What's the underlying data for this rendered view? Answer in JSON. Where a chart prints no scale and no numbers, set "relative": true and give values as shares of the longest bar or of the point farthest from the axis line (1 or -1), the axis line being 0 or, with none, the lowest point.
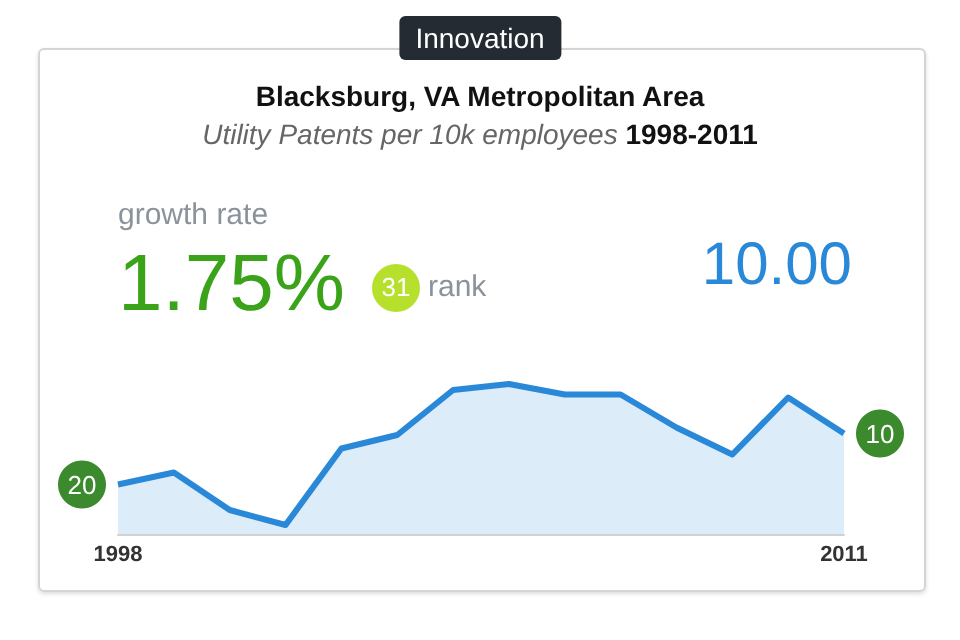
{
  "chart_data": {
    "type": "area",
    "relative": true,
    "title": "Blacksburg, VA Metropolitan Area",
    "subtitle": "Utility Patents per 10k employees 1998-2011",
    "categories": [
      "1998",
      null,
      null,
      null,
      null,
      null,
      null,
      null,
      null,
      null,
      null,
      null,
      null,
      "2011"
    ],
    "series": [
      {
        "color": "#2a88d8",
        "values": [
          0.33,
          0.41,
          0.16,
          0.06,
          0.57,
          0.66,
          0.96,
          1,
          0.93,
          0.93,
          0.71,
          0.53,
          0.91,
          0.67
        ]
      }
    ],
    "annotations": [
      "Innovation",
      "growth rate",
      "1.75%",
      "31",
      "rank",
      "10.00",
      {
        "text": "20",
        "x": "1998",
        "y": 0.33
      },
      {
        "text": "10",
        "x": "2011",
        "y": 0.67
      }
    ],
    "line_style": "solid"
  }
}
